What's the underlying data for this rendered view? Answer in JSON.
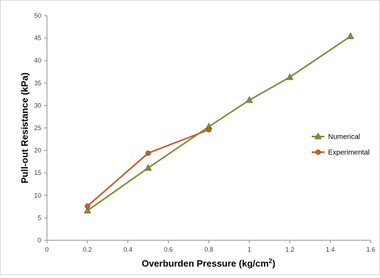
{
  "chart_data": {
    "type": "line",
    "title": "",
    "xlabel": "Overburden Pressure (kg/cm",
    "xlabel_sup": "2",
    "xlabel_suffix": ")",
    "ylabel": "Pull-out Resistance (kPa)",
    "xlim": [
      0,
      1.6
    ],
    "ylim": [
      0,
      50
    ],
    "xticks": [
      "0",
      "0.2",
      "0.4",
      "0.6",
      "0.8",
      "1",
      "1.2",
      "1.4",
      "1.6"
    ],
    "yticks": [
      "0",
      "5",
      "10",
      "15",
      "20",
      "25",
      "30",
      "35",
      "40",
      "45",
      "50"
    ],
    "grid": false,
    "legend_position": "right",
    "series": [
      {
        "name": "Numerical",
        "color": "#77933C",
        "marker": "triangle",
        "points": [
          [
            0.2,
            6.6
          ],
          [
            0.5,
            16.1
          ],
          [
            0.8,
            25.3
          ],
          [
            1.0,
            31.2
          ],
          [
            1.2,
            36.3
          ],
          [
            1.5,
            45.4
          ]
        ]
      },
      {
        "name": "Experimental",
        "color": "#C0622A",
        "marker": "circle",
        "points": [
          [
            0.2,
            7.6
          ],
          [
            0.5,
            19.4
          ],
          [
            0.8,
            24.6
          ]
        ]
      }
    ]
  }
}
